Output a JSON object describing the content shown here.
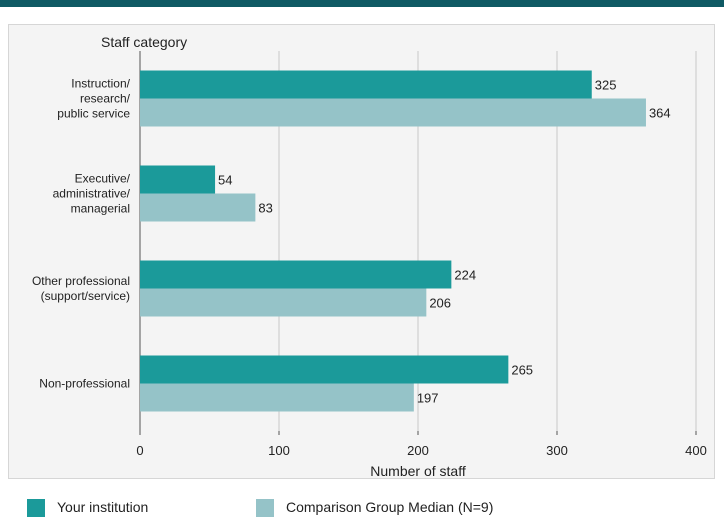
{
  "colors": {
    "top_bar": "#0f5a64",
    "your_institution": "#1b9a9a",
    "comparison": "#95c3c8",
    "background": "#f4f4f4",
    "grid": "#c9c9c9",
    "axis": "#555555"
  },
  "chart_data": {
    "type": "bar",
    "orientation": "horizontal",
    "ylabel": "Staff category",
    "xlabel": "Number of staff",
    "xlim": [
      0,
      400
    ],
    "xticks": [
      "0",
      "100",
      "200",
      "300",
      "400"
    ],
    "grid": true,
    "legend_position": "bottom",
    "categories": [
      [
        "Instruction/",
        "research/",
        "public service"
      ],
      [
        "Executive/",
        "administrative/",
        "managerial"
      ],
      [
        "Other professional",
        "(support/service)"
      ],
      [
        "Non-professional"
      ]
    ],
    "series": [
      {
        "name": "Your institution",
        "values": [
          325,
          54,
          224,
          265
        ]
      },
      {
        "name": "Comparison Group Median (N=9)",
        "values": [
          364,
          83,
          206,
          197
        ]
      }
    ]
  }
}
